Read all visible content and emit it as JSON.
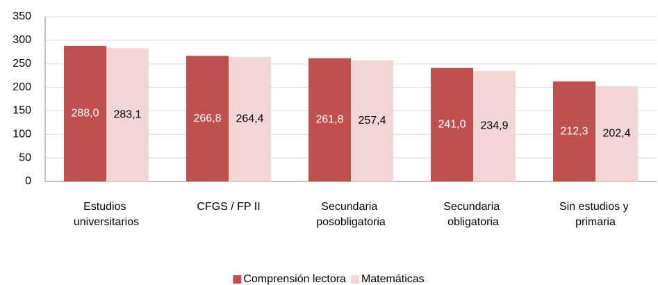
{
  "chart_data": {
    "type": "bar",
    "categories": [
      "Estudios universitarios",
      "CFGS / FP II",
      "Secundaria posobligatoria",
      "Secundaria obligatoria",
      "Sin estudios y primaria"
    ],
    "series": [
      {
        "name": "Comprensión lectora",
        "color": "#c0504d",
        "values": [
          288.0,
          266.8,
          261.8,
          241.0,
          212.3
        ],
        "value_labels": [
          "288,0",
          "266,8",
          "261,8",
          "241,0",
          "212,3"
        ]
      },
      {
        "name": "Matemáticas",
        "color": "#f2d5d5",
        "values": [
          283.1,
          264.4,
          257.4,
          234.9,
          202.4
        ],
        "value_labels": [
          "283,1",
          "264,4",
          "257,4",
          "234,9",
          "202,4"
        ]
      }
    ],
    "ylim": [
      0,
      350
    ],
    "yticks": [
      0,
      50,
      100,
      150,
      200,
      250,
      300,
      350
    ],
    "grid": true,
    "legend": "bottom"
  }
}
